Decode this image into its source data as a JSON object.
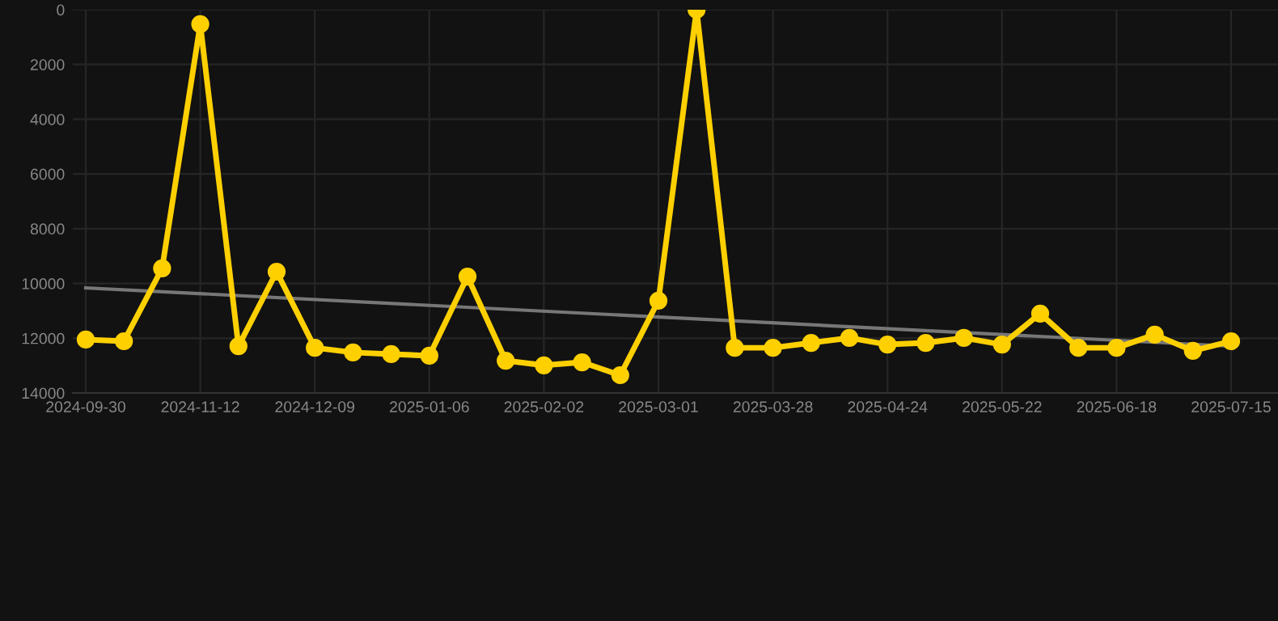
{
  "chart_data": {
    "type": "line",
    "categories": [
      "2024-09-30",
      null,
      null,
      "2024-11-12",
      null,
      null,
      "2024-12-09",
      null,
      null,
      "2025-01-06",
      null,
      null,
      "2025-02-02",
      null,
      null,
      "2025-03-01",
      null,
      null,
      "2025-03-28",
      null,
      null,
      "2025-04-24",
      null,
      null,
      "2025-05-22",
      null,
      null,
      "2025-06-18",
      null,
      null,
      "2025-07-15"
    ],
    "series": [
      {
        "color": "#ffd000",
        "marker": "circle",
        "values": [
          12050,
          12110,
          9450,
          530,
          12290,
          9570,
          12350,
          12520,
          12580,
          12640,
          9750,
          12820,
          12990,
          12880,
          13350,
          10630,
          0,
          12350,
          12350,
          12170,
          11990,
          12230,
          12170,
          11990,
          12230,
          11100,
          12350,
          12350,
          11870,
          12460,
          12110
        ]
      },
      {
        "color": "#777777",
        "marker": "none",
        "values": [
          10160,
          null,
          null,
          null,
          null,
          null,
          null,
          null,
          null,
          null,
          null,
          null,
          null,
          null,
          null,
          null,
          null,
          null,
          null,
          null,
          null,
          null,
          null,
          null,
          null,
          null,
          null,
          null,
          null,
          null,
          12290
        ]
      }
    ],
    "ylim": [
      14000,
      0
    ],
    "yticks": [
      0,
      2000,
      4000,
      6000,
      8000,
      10000,
      12000,
      14000
    ],
    "grid": true,
    "line_style": "solid"
  }
}
